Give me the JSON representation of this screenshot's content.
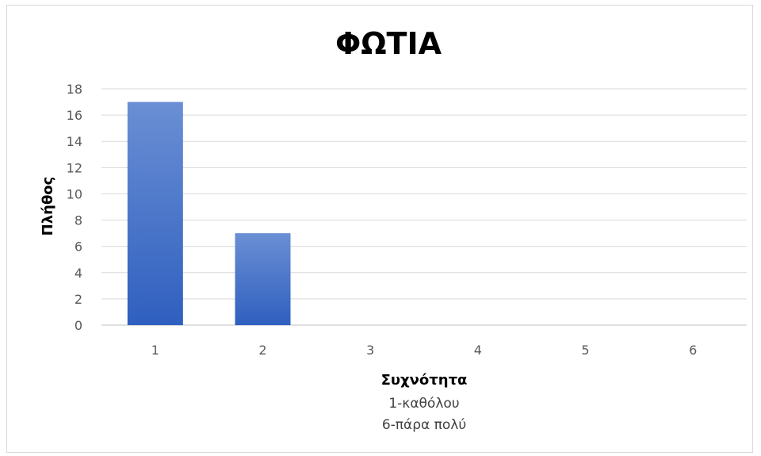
{
  "chart_data": {
    "type": "bar",
    "title": "ΦΩΤΙΑ",
    "xlabel": "Συχνότητα",
    "xlabel_lines": [
      "1-καθόλου",
      "6-πάρα πολύ"
    ],
    "ylabel": "Πλήθος",
    "categories": [
      "1",
      "2",
      "3",
      "4",
      "5",
      "6"
    ],
    "values": [
      17,
      7,
      0,
      0,
      0,
      0
    ],
    "ylim": [
      0,
      18
    ],
    "yticks": [
      0,
      2,
      4,
      6,
      8,
      10,
      12,
      14,
      16,
      18
    ],
    "grid": true,
    "legend": "none",
    "colors": {
      "bar_top": "#6a8fd4",
      "bar_bottom": "#2f5fbf",
      "grid": "#d9d9d9",
      "axis": "#bfbfbf"
    }
  }
}
